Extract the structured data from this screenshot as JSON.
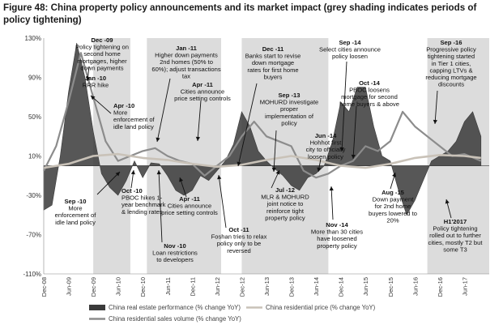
{
  "title": "Figure 48: China property policy announcements and its market impact (grey shading indicates periods of policy tightening)",
  "colors": {
    "shade": "#dcdcdc",
    "real_estate": "#3a3a3a",
    "sales_volume": "#8c8c8c",
    "price": "#c9c2b8",
    "arrow": "#111111"
  },
  "chart_data": {
    "type": "area",
    "title": "Figure 48: China property policy announcements and its market impact (grey shading indicates periods of policy tightening)",
    "ylim": [
      -110,
      130
    ],
    "y_ticks": [
      130,
      90,
      50,
      10,
      -30,
      -70,
      -110
    ],
    "y_tick_labels": [
      "130%",
      "90%",
      "50%",
      "10%",
      "-30%",
      "-70%",
      "-110%"
    ],
    "x_ticks": [
      "Dec-08",
      "Jun-09",
      "Dec-09",
      "Jun-10",
      "Dec-10",
      "Jun-11",
      "Dec-11",
      "Jun-12",
      "Dec-12",
      "Jun-13",
      "Dec-13",
      "Jun-14",
      "Dec-14",
      "Jun-15",
      "Dec-15",
      "Jun-16",
      "Dec-16",
      "Jun-17"
    ],
    "shaded_periods": [
      [
        "Dec-09",
        "Sep-10"
      ],
      [
        "Jan-11",
        "Jul-12"
      ],
      [
        "Dec-12",
        "Sep-14"
      ],
      [
        "Sep-16",
        "Dec-17"
      ]
    ],
    "series": [
      {
        "name": "China real estate performance (% change YoY)",
        "type": "area",
        "points": [
          [
            "Dec-08",
            -45
          ],
          [
            "Feb-09",
            -40
          ],
          [
            "Apr-09",
            10
          ],
          [
            "Jun-09",
            75
          ],
          [
            "Aug-09",
            125
          ],
          [
            "Oct-09",
            90
          ],
          [
            "Dec-09",
            35
          ],
          [
            "Feb-10",
            -8
          ],
          [
            "Apr-10",
            -22
          ],
          [
            "Jun-10",
            -30
          ],
          [
            "Aug-10",
            -15
          ],
          [
            "Oct-10",
            5
          ],
          [
            "Dec-10",
            -12
          ],
          [
            "Feb-11",
            3
          ],
          [
            "Apr-11",
            2
          ],
          [
            "Jun-11",
            -10
          ],
          [
            "Aug-11",
            -25
          ],
          [
            "Oct-11",
            -30
          ],
          [
            "Dec-11",
            -25
          ],
          [
            "Feb-12",
            -10
          ],
          [
            "Apr-12",
            -15
          ],
          [
            "Jun-12",
            -5
          ],
          [
            "Aug-12",
            5
          ],
          [
            "Oct-12",
            22
          ],
          [
            "Dec-12",
            55
          ],
          [
            "Feb-13",
            40
          ],
          [
            "Apr-13",
            15
          ],
          [
            "Jun-13",
            5
          ],
          [
            "Aug-13",
            -3
          ],
          [
            "Oct-13",
            -10
          ],
          [
            "Dec-13",
            -20
          ],
          [
            "Feb-14",
            -25
          ],
          [
            "Apr-14",
            -12
          ],
          [
            "Jun-14",
            -8
          ],
          [
            "Aug-14",
            0
          ],
          [
            "Oct-14",
            25
          ],
          [
            "Dec-14",
            65
          ],
          [
            "Feb-15",
            55
          ],
          [
            "Apr-15",
            80
          ],
          [
            "Jun-15",
            80
          ],
          [
            "Aug-15",
            40
          ],
          [
            "Oct-15",
            10
          ],
          [
            "Dec-15",
            5
          ],
          [
            "Feb-16",
            -25
          ],
          [
            "Apr-16",
            -50
          ],
          [
            "Jun-16",
            -35
          ],
          [
            "Aug-16",
            -15
          ],
          [
            "Oct-16",
            5
          ],
          [
            "Dec-16",
            10
          ],
          [
            "Feb-17",
            15
          ],
          [
            "Apr-17",
            25
          ],
          [
            "Jun-17",
            45
          ],
          [
            "Aug-17",
            55
          ],
          [
            "Oct-17",
            30
          ]
        ]
      },
      {
        "name": "China residential sales volume (% change YoY)",
        "type": "line",
        "points": [
          [
            "Dec-08",
            -5
          ],
          [
            "Mar-09",
            20
          ],
          [
            "Jun-09",
            65
          ],
          [
            "Sep-09",
            115
          ],
          [
            "Dec-09",
            70
          ],
          [
            "Mar-10",
            25
          ],
          [
            "Jun-10",
            5
          ],
          [
            "Sep-10",
            10
          ],
          [
            "Dec-10",
            15
          ],
          [
            "Mar-11",
            18
          ],
          [
            "Jun-11",
            10
          ],
          [
            "Sep-11",
            5
          ],
          [
            "Dec-11",
            2
          ],
          [
            "Mar-12",
            -10
          ],
          [
            "Jun-12",
            0
          ],
          [
            "Sep-12",
            10
          ],
          [
            "Dec-12",
            30
          ],
          [
            "Mar-13",
            45
          ],
          [
            "Jun-13",
            30
          ],
          [
            "Sep-13",
            25
          ],
          [
            "Dec-13",
            20
          ],
          [
            "Mar-14",
            -5
          ],
          [
            "Jun-14",
            -12
          ],
          [
            "Sep-14",
            -8
          ],
          [
            "Dec-14",
            0
          ],
          [
            "Mar-15",
            5
          ],
          [
            "Jun-15",
            20
          ],
          [
            "Sep-15",
            15
          ],
          [
            "Dec-15",
            25
          ],
          [
            "Mar-16",
            55
          ],
          [
            "Jun-16",
            40
          ],
          [
            "Sep-16",
            30
          ],
          [
            "Dec-16",
            20
          ],
          [
            "Mar-17",
            10
          ],
          [
            "Jun-17",
            12
          ],
          [
            "Oct-17",
            5
          ]
        ]
      },
      {
        "name": "China residential price (% change YoY)",
        "type": "line",
        "points": [
          [
            "Dec-08",
            -2
          ],
          [
            "Jun-09",
            2
          ],
          [
            "Dec-09",
            10
          ],
          [
            "Jun-10",
            12
          ],
          [
            "Dec-10",
            8
          ],
          [
            "Jun-11",
            6
          ],
          [
            "Dec-11",
            2
          ],
          [
            "Jun-12",
            -1
          ],
          [
            "Dec-12",
            1
          ],
          [
            "Jun-13",
            6
          ],
          [
            "Dec-13",
            10
          ],
          [
            "Jun-14",
            6
          ],
          [
            "Dec-14",
            0
          ],
          [
            "Jun-15",
            -2
          ],
          [
            "Dec-15",
            2
          ],
          [
            "Jun-16",
            8
          ],
          [
            "Dec-16",
            11
          ],
          [
            "Jun-17",
            10
          ],
          [
            "Oct-17",
            8
          ]
        ]
      }
    ],
    "legend": [
      "China real estate performance (% change YoY)",
      "China residential price (% change YoY)",
      "China residential sales volume (% change YoY)"
    ],
    "legend_position": "bottom"
  },
  "annotations": [
    {
      "id": "dec09",
      "date": "Dec -09",
      "text": [
        "Policy tightening on",
        "second home",
        "mortgages, higher",
        "down payments"
      ]
    },
    {
      "id": "jan10",
      "date": "Jan -10",
      "text": [
        "RRR hike"
      ]
    },
    {
      "id": "apr10",
      "date": "Apr -10",
      "text": [
        "More",
        "enforcement of",
        "idle land policy"
      ]
    },
    {
      "id": "jan11",
      "date": "Jan -11",
      "text": [
        "Higher down payments",
        "2nd homes (50% to",
        "60%); adjust transactions",
        "tax"
      ]
    },
    {
      "id": "apr11a",
      "date": "Apr -11",
      "text": [
        "Cities announce",
        "price setting controls"
      ]
    },
    {
      "id": "dec11",
      "date": "Dec -11",
      "text": [
        "Banks start to revise",
        "down mortgage",
        "rates for first home",
        "buyers"
      ]
    },
    {
      "id": "sep13",
      "date": "Sep -13",
      "text": [
        "MOHURD investigate",
        "proper",
        "implementation of",
        "policy"
      ]
    },
    {
      "id": "jun14",
      "date": "Jun -14",
      "text": [
        "Hohhot first",
        "city to officially",
        "loosen policy"
      ]
    },
    {
      "id": "sep14",
      "date": "Sep -14",
      "text": [
        "Select cities announce",
        "policy loosen"
      ]
    },
    {
      "id": "oct14",
      "date": "Oct -14",
      "text": [
        "PBOC loosens",
        "mortgage for second",
        "home buyers & above"
      ]
    },
    {
      "id": "sep16",
      "date": "Sep -16",
      "text": [
        "Progressive policy",
        "tightening started",
        "in Tier 1 cities,",
        "capping LTVs &",
        "reducing mortgage",
        "discounts"
      ]
    },
    {
      "id": "sep10",
      "date": "Sep -10",
      "text": [
        "More",
        "enforcement of",
        "idle land policy"
      ]
    },
    {
      "id": "oct10",
      "date": "Oct -10",
      "text": [
        "PBOC hikes 1-",
        "year benchmark",
        "& lending rates"
      ]
    },
    {
      "id": "nov10",
      "date": "Nov -10",
      "text": [
        "Loan restrictions",
        "to developers"
      ]
    },
    {
      "id": "apr11b",
      "date": "Apr -11",
      "text": [
        "Cities announce",
        "price setting controls"
      ]
    },
    {
      "id": "oct11",
      "date": "Oct -11",
      "text": [
        "Foshan tries to relax",
        "policy only to be",
        "reversed"
      ]
    },
    {
      "id": "jul12",
      "date": "Jul -12",
      "text": [
        "MLR & MOHURD",
        "joint notice to",
        "reinforce tight",
        "property policy"
      ]
    },
    {
      "id": "nov14",
      "date": "Nov -14",
      "text": [
        "More than 30 cities",
        "have loosened",
        "property policy"
      ]
    },
    {
      "id": "aug15",
      "date": "Aug -15",
      "text": [
        "Down payment",
        "for 2nd home",
        "buyers lowered to",
        "20%"
      ]
    },
    {
      "id": "h117",
      "date": "H1'2017",
      "text": [
        "Policy tightening",
        "rolled out to further",
        "cities, mostly T2 but",
        "some T3"
      ]
    }
  ]
}
